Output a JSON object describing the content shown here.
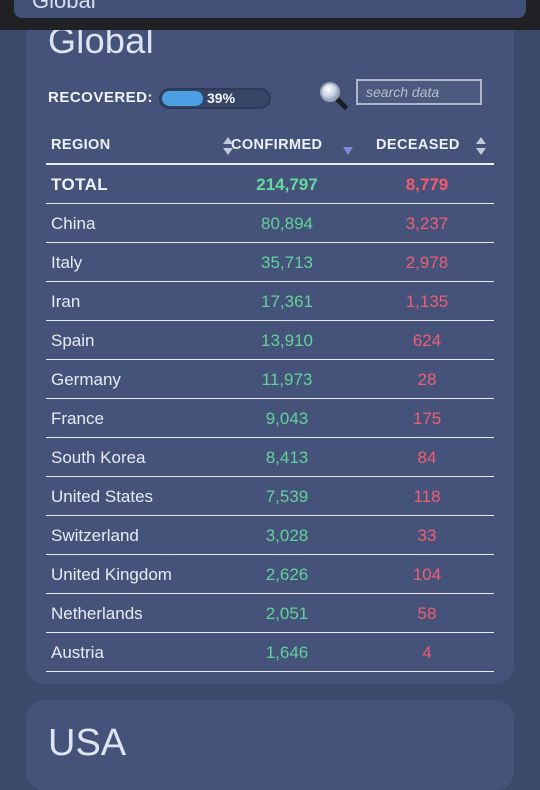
{
  "topbar": {
    "title": "Global"
  },
  "global": {
    "title": "Global",
    "recovered_label": "RECOVERED:",
    "recovered_percent_text": "39%",
    "recovered_fraction": 0.39,
    "search": {
      "placeholder": "search data",
      "value": ""
    },
    "columns": {
      "region": "REGION",
      "confirmed": "CONFIRMED",
      "deceased": "DECEASED"
    },
    "sort": {
      "column": "confirmed",
      "direction": "descending"
    },
    "total": {
      "region": "TOTAL",
      "confirmed": "214,797",
      "deceased": "8,779"
    },
    "rows": [
      {
        "region": "China",
        "confirmed": "80,894",
        "deceased": "3,237"
      },
      {
        "region": "Italy",
        "confirmed": "35,713",
        "deceased": "2,978"
      },
      {
        "region": "Iran",
        "confirmed": "17,361",
        "deceased": "1,135"
      },
      {
        "region": "Spain",
        "confirmed": "13,910",
        "deceased": "624"
      },
      {
        "region": "Germany",
        "confirmed": "11,973",
        "deceased": "28"
      },
      {
        "region": "France",
        "confirmed": "9,043",
        "deceased": "175"
      },
      {
        "region": "South Korea",
        "confirmed": "8,413",
        "deceased": "84"
      },
      {
        "region": "United States",
        "confirmed": "7,539",
        "deceased": "118"
      },
      {
        "region": "Switzerland",
        "confirmed": "3,028",
        "deceased": "33"
      },
      {
        "region": "United Kingdom",
        "confirmed": "2,626",
        "deceased": "104"
      },
      {
        "region": "Netherlands",
        "confirmed": "2,051",
        "deceased": "58"
      },
      {
        "region": "Austria",
        "confirmed": "1,646",
        "deceased": "4"
      }
    ]
  },
  "usa": {
    "title": "USA"
  },
  "colors": {
    "background": "#3b4a6b",
    "card": "#45537a",
    "confirmed": "#63d19a",
    "deceased": "#f05e73",
    "progress": "#4b9fe3"
  },
  "icons": {
    "search": "magnifier-icon",
    "sort_both": "sort-up-down-icon",
    "sort_desc": "sort-down-icon"
  }
}
